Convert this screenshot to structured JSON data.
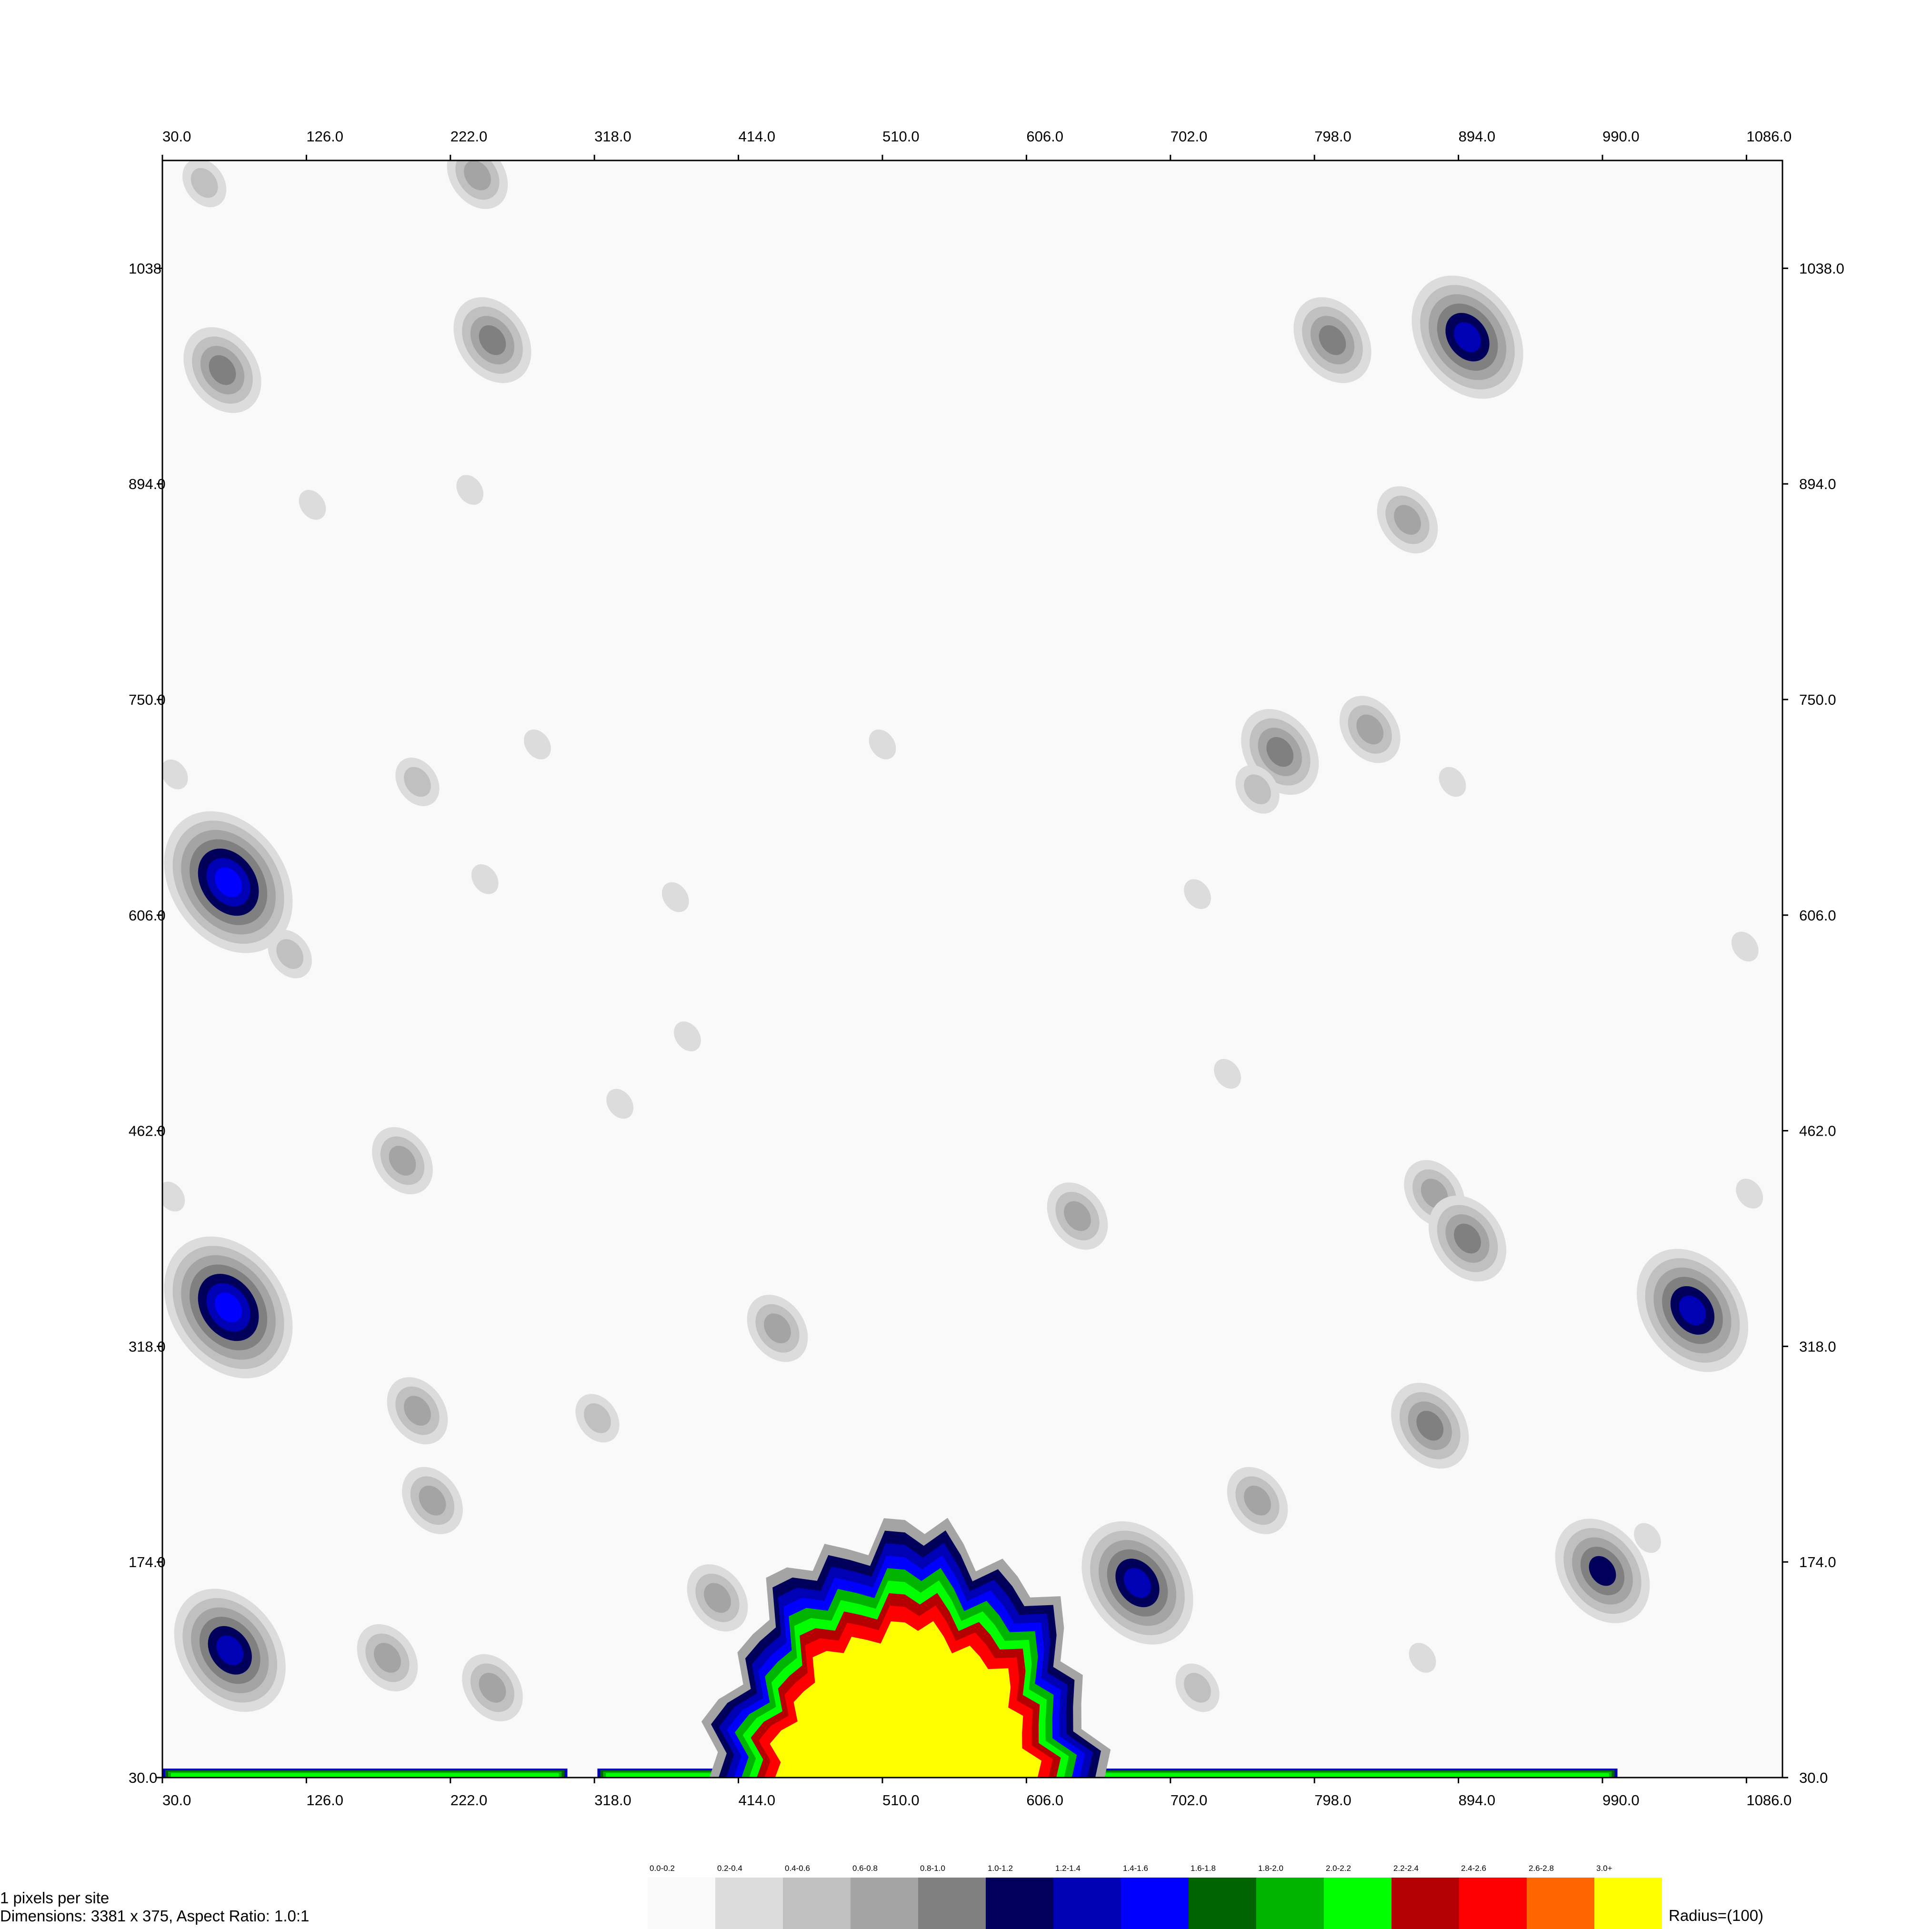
{
  "chart_data": {
    "type": "heatmap",
    "title": "",
    "x_ticks": [
      "30.0",
      "126.0",
      "222.0",
      "318.0",
      "414.0",
      "510.0",
      "606.0",
      "702.0",
      "798.0",
      "894.0",
      "990.0",
      "1086.0"
    ],
    "y_ticks": [
      "30.0",
      "174.0",
      "318.0",
      "462.0",
      "606.0",
      "750.0",
      "894.0",
      "1038.0"
    ],
    "y_ticks_left_shown": [
      "30.0",
      "174.0",
      "318.0",
      "462.0",
      "606.0",
      "750.0",
      "894.0",
      "1038"
    ],
    "xlim": [
      30,
      1110
    ],
    "ylim": [
      30,
      1110
    ],
    "grid": false,
    "legend_placement": "bottom",
    "legend": [
      {
        "range": "0.0-0.2",
        "color": "#f9f9f9"
      },
      {
        "range": "0.2-0.4",
        "color": "#dcdcdc"
      },
      {
        "range": "0.4-0.6",
        "color": "#c0c0c0"
      },
      {
        "range": "0.6-0.8",
        "color": "#a4a4a4"
      },
      {
        "range": "0.8-1.0",
        "color": "#808080"
      },
      {
        "range": "1.0-1.2",
        "color": "#00005a"
      },
      {
        "range": "1.2-1.4",
        "color": "#0000b4"
      },
      {
        "range": "1.4-1.6",
        "color": "#0000ff"
      },
      {
        "range": "1.6-1.8",
        "color": "#006400"
      },
      {
        "range": "1.8-2.0",
        "color": "#00b400"
      },
      {
        "range": "2.0-2.2",
        "color": "#00ff00"
      },
      {
        "range": "2.2-2.4",
        "color": "#b40000"
      },
      {
        "range": "2.4-2.6",
        "color": "#ff0000"
      },
      {
        "range": "2.6-2.8",
        "color": "#ff6400"
      },
      {
        "range": "3.0+",
        "color": "#ffff00"
      }
    ],
    "hotspots": [
      {
        "x": 58,
        "y": 1095,
        "level": 0.4
      },
      {
        "x": 240,
        "y": 1100,
        "level": 0.6
      },
      {
        "x": 70,
        "y": 970,
        "level": 0.8
      },
      {
        "x": 250,
        "y": 990,
        "level": 0.8
      },
      {
        "x": 235,
        "y": 890,
        "level": 0.2
      },
      {
        "x": 130,
        "y": 880,
        "level": 0.2
      },
      {
        "x": 810,
        "y": 990,
        "level": 0.8
      },
      {
        "x": 900,
        "y": 992,
        "level": 1.2
      },
      {
        "x": 860,
        "y": 870,
        "level": 0.6
      },
      {
        "x": 775,
        "y": 715,
        "level": 0.8
      },
      {
        "x": 760,
        "y": 690,
        "level": 0.4
      },
      {
        "x": 835,
        "y": 730,
        "level": 0.6
      },
      {
        "x": 890,
        "y": 695,
        "level": 0.2
      },
      {
        "x": 200,
        "y": 695,
        "level": 0.4
      },
      {
        "x": 280,
        "y": 720,
        "level": 0.2
      },
      {
        "x": 510,
        "y": 720,
        "level": 0.2
      },
      {
        "x": 38,
        "y": 700,
        "level": 0.2
      },
      {
        "x": 74,
        "y": 628,
        "level": 1.4
      },
      {
        "x": 115,
        "y": 580,
        "level": 0.4
      },
      {
        "x": 245,
        "y": 630,
        "level": 0.2
      },
      {
        "x": 372,
        "y": 618,
        "level": 0.2
      },
      {
        "x": 720,
        "y": 620,
        "level": 0.2
      },
      {
        "x": 1085,
        "y": 585,
        "level": 0.2
      },
      {
        "x": 190,
        "y": 442,
        "level": 0.6
      },
      {
        "x": 335,
        "y": 480,
        "level": 0.2
      },
      {
        "x": 380,
        "y": 525,
        "level": 0.2
      },
      {
        "x": 740,
        "y": 500,
        "level": 0.2
      },
      {
        "x": 878,
        "y": 420,
        "level": 0.6
      },
      {
        "x": 900,
        "y": 390,
        "level": 0.8
      },
      {
        "x": 1050,
        "y": 342,
        "level": 1.2
      },
      {
        "x": 74,
        "y": 344,
        "level": 1.4
      },
      {
        "x": 440,
        "y": 330,
        "level": 0.6
      },
      {
        "x": 640,
        "y": 405,
        "level": 0.6
      },
      {
        "x": 36,
        "y": 418,
        "level": 0.2
      },
      {
        "x": 1088,
        "y": 420,
        "level": 0.2
      },
      {
        "x": 200,
        "y": 275,
        "level": 0.6
      },
      {
        "x": 320,
        "y": 270,
        "level": 0.4
      },
      {
        "x": 210,
        "y": 215,
        "level": 0.6
      },
      {
        "x": 760,
        "y": 215,
        "level": 0.6
      },
      {
        "x": 875,
        "y": 265,
        "level": 0.8
      },
      {
        "x": 990,
        "y": 168,
        "level": 1.0
      },
      {
        "x": 680,
        "y": 160,
        "level": 1.2
      },
      {
        "x": 75,
        "y": 115,
        "level": 1.2
      },
      {
        "x": 180,
        "y": 110,
        "level": 0.6
      },
      {
        "x": 250,
        "y": 90,
        "level": 0.6
      },
      {
        "x": 400,
        "y": 150,
        "level": 0.6
      },
      {
        "x": 720,
        "y": 90,
        "level": 0.4
      },
      {
        "x": 870,
        "y": 110,
        "level": 0.2
      },
      {
        "x": 1020,
        "y": 190,
        "level": 0.2
      }
    ],
    "core": {
      "center_x": 525,
      "center_y": 30,
      "level": "3.0+"
    },
    "bottom_band": {
      "y": 30,
      "ranges": [
        [
          30,
          300
        ],
        [
          320,
          440
        ],
        [
          620,
          1000
        ]
      ]
    }
  },
  "footer": {
    "resolution": "1 pixels per site",
    "dimensions": "Dimensions: 3381 x 375, Aspect Ratio: 1.0:1",
    "radius": "Radius=(100)"
  }
}
